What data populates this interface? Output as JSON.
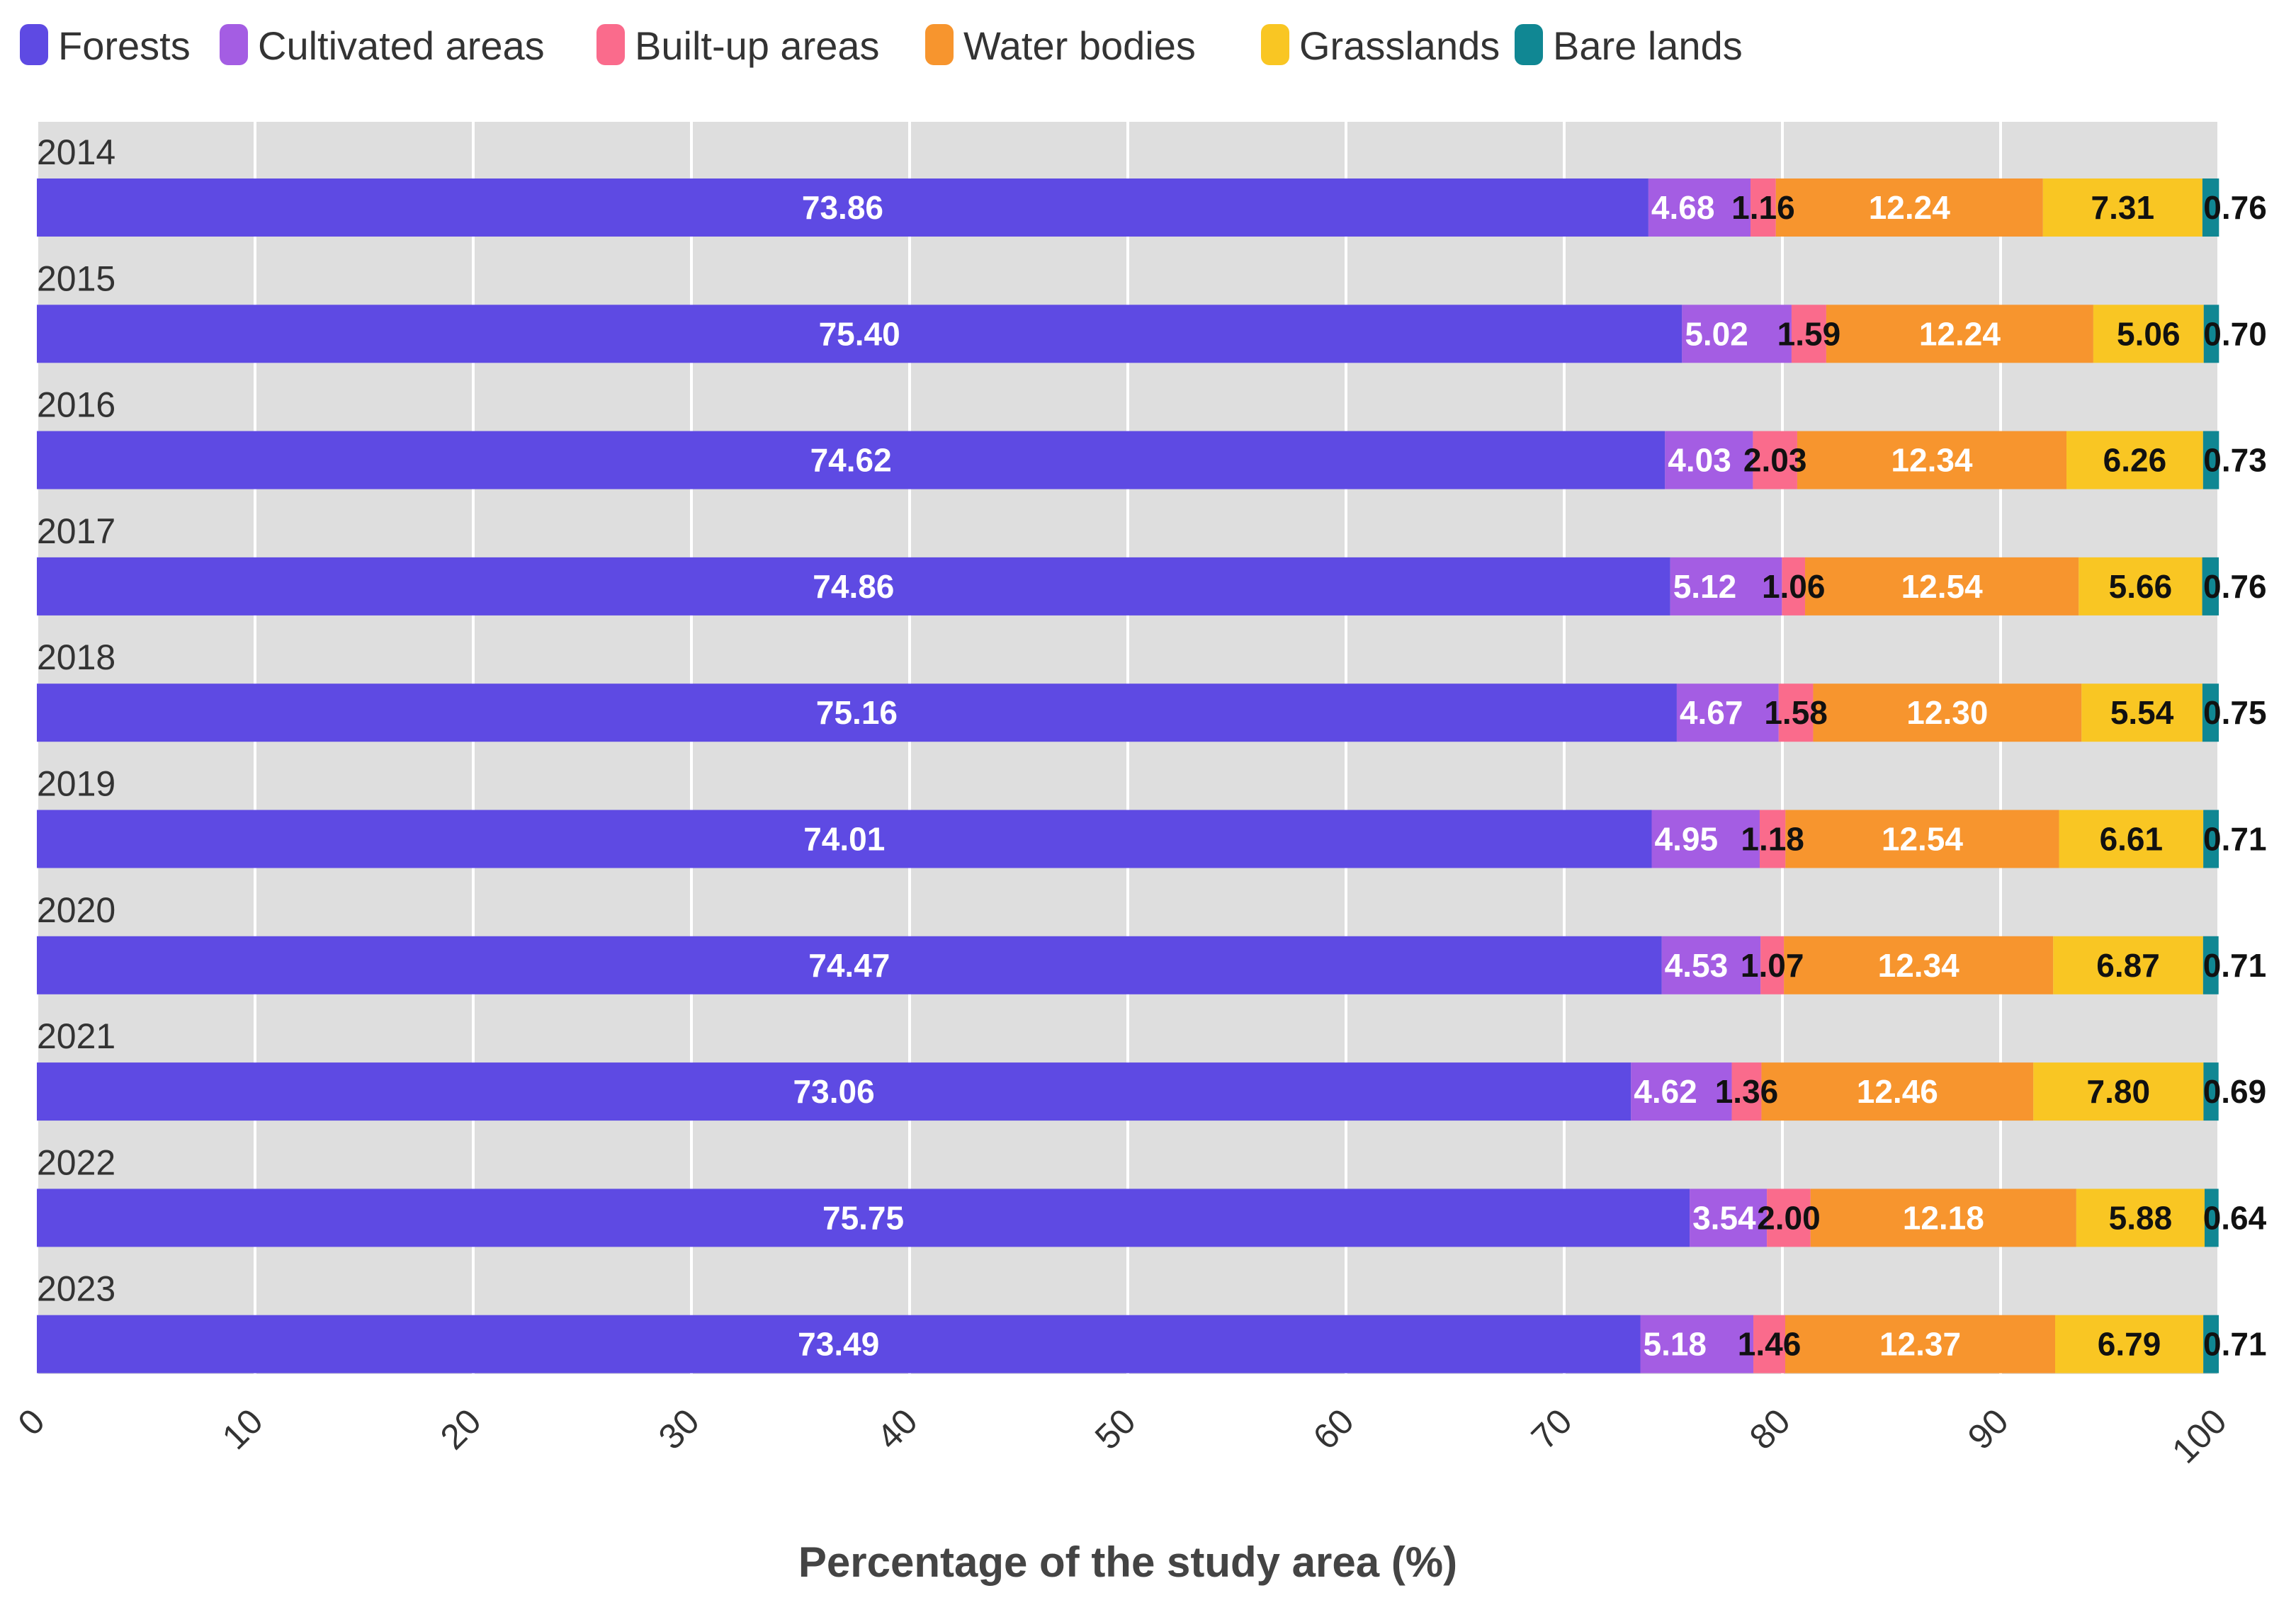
{
  "chart_data": {
    "type": "bar",
    "orientation": "horizontal",
    "stacked": true,
    "categories": [
      "2014",
      "2015",
      "2016",
      "2017",
      "2018",
      "2019",
      "2020",
      "2021",
      "2022",
      "2023"
    ],
    "series": [
      {
        "name": "Forests",
        "color": "#5e4ae3",
        "label_color": "#ffffff",
        "values": [
          73.86,
          75.4,
          74.62,
          74.86,
          75.16,
          74.01,
          74.47,
          73.06,
          75.75,
          73.49
        ],
        "labels": [
          "73.86",
          "75.40",
          "74.62",
          "74.86",
          "75.16",
          "74.01",
          "74.47",
          "73.06",
          "75.75",
          "73.49"
        ]
      },
      {
        "name": "Cultivated areas",
        "color": "#a45de3",
        "label_color": "#ffffff",
        "values": [
          4.68,
          5.02,
          4.03,
          5.12,
          4.67,
          4.95,
          4.53,
          4.62,
          3.54,
          5.18
        ],
        "labels": [
          "4.68",
          "5.02",
          "4.03",
          "5.12",
          "4.67",
          "4.95",
          "4.53",
          "4.62",
          "3.54",
          "5.18"
        ]
      },
      {
        "name": "Built-up areas",
        "color": "#fa6b8c",
        "label_color": "#111111",
        "values": [
          1.16,
          1.59,
          2.03,
          1.06,
          1.58,
          1.18,
          1.07,
          1.36,
          2.0,
          1.46
        ],
        "labels": [
          "1.16",
          "1.59",
          "2.03",
          "1.06",
          "1.58",
          "1.18",
          "1.07",
          "1.36",
          "2.00",
          "1.46"
        ]
      },
      {
        "name": "Water bodies",
        "color": "#f7952e",
        "label_color": "#ffffff",
        "values": [
          12.24,
          12.24,
          12.34,
          12.54,
          12.3,
          12.54,
          12.34,
          12.46,
          12.18,
          12.37
        ],
        "labels": [
          "12.24",
          "12.24",
          "12.34",
          "12.54",
          "12.30",
          "12.54",
          "12.34",
          "12.46",
          "12.18",
          "12.37"
        ]
      },
      {
        "name": "Grasslands",
        "color": "#f9c623",
        "label_color": "#111111",
        "values": [
          7.31,
          5.06,
          6.26,
          5.66,
          5.54,
          6.61,
          6.87,
          7.8,
          5.88,
          6.79
        ],
        "labels": [
          "7.31",
          "5.06",
          "6.26",
          "5.66",
          "5.54",
          "6.61",
          "6.87",
          "7.80",
          "5.88",
          "6.79"
        ]
      },
      {
        "name": "Bare lands",
        "color": "#108793",
        "label_color": "#111111",
        "values": [
          0.76,
          0.7,
          0.73,
          0.76,
          0.75,
          0.71,
          0.71,
          0.69,
          0.64,
          0.71
        ],
        "labels": [
          "0.76",
          "0.70",
          "0.73",
          "0.76",
          "0.75",
          "0.71",
          "0.71",
          "0.69",
          "0.64",
          "0.71"
        ]
      }
    ],
    "xlabel": "Percentage of the study area (%)",
    "ylabel": "",
    "xlim": [
      0,
      100
    ],
    "xticks": [
      "0",
      "10",
      "20",
      "30",
      "40",
      "50",
      "60",
      "70",
      "80",
      "90",
      "100"
    ],
    "grid": true,
    "legend_position": "top-left",
    "plot_background": "#dedede"
  }
}
